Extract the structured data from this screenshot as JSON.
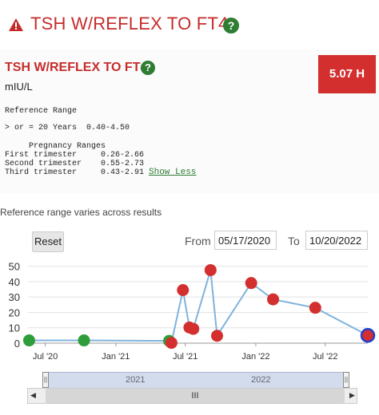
{
  "header": {
    "title": "TSH W/REFLEX TO FT4",
    "warn_icon": "warning-triangle-icon",
    "help_icon": "question-icon",
    "help_glyph": "?"
  },
  "test": {
    "name": "TSH W/REFLEX TO FT4",
    "help_glyph": "?",
    "units": "mIU/L",
    "result": "5.07 H",
    "reference_range_label": "Reference Range",
    "reference_line": "> or = 20 Years  0.40-4.50",
    "pregnancy_heading": "Pregnancy Ranges",
    "pregnancy_ranges": [
      "First trimester     0.26-2.66",
      "Second trimester    0.55-2.73",
      "Third trimester     0.43-2.91"
    ],
    "show_less": "Show Less"
  },
  "note": "Reference range varies across results",
  "controls": {
    "reset": "Reset",
    "from_label": "From",
    "from_value": "05/17/2020",
    "to_label": "To",
    "to_value": "10/20/2022"
  },
  "navigator": {
    "years": [
      "2021",
      "2022"
    ],
    "handle_glyph": "||",
    "scroll_thumb": "III",
    "left_arrow": "◀",
    "right_arrow": "▶"
  },
  "colors": {
    "accent": "#c62b2b",
    "high": "#d32f2f",
    "normal": "#2e9e3a",
    "line": "#7fb3dd",
    "latest_ring": "#1e3fd1"
  },
  "chart_data": {
    "type": "line",
    "x_ticks": [
      "Jul '20",
      "Jan '21",
      "Jul '21",
      "Jan '22",
      "Jul '22"
    ],
    "x_tick_dates": [
      "2020-07-01",
      "2021-01-01",
      "2021-07-01",
      "2022-01-01",
      "2022-07-01"
    ],
    "y_ticks": [
      0,
      10,
      20,
      30,
      40,
      50
    ],
    "ylim": [
      0,
      55
    ],
    "xlim": [
      "2020-05-17",
      "2022-10-20"
    ],
    "grid": true,
    "points": [
      {
        "date": "2020-05-20",
        "value": 1.8,
        "status": "normal"
      },
      {
        "date": "2020-10-10",
        "value": 1.8,
        "status": "normal"
      },
      {
        "date": "2021-05-20",
        "value": 1.5,
        "status": "normal"
      },
      {
        "date": "2021-05-26",
        "value": 0.2,
        "status": "high"
      },
      {
        "date": "2021-06-25",
        "value": 34.5,
        "status": "high"
      },
      {
        "date": "2021-07-12",
        "value": 10.2,
        "status": "high"
      },
      {
        "date": "2021-07-22",
        "value": 9.3,
        "status": "high"
      },
      {
        "date": "2021-09-05",
        "value": 47.5,
        "status": "high"
      },
      {
        "date": "2021-09-22",
        "value": 4.8,
        "status": "high"
      },
      {
        "date": "2021-12-20",
        "value": 39.1,
        "status": "high"
      },
      {
        "date": "2022-02-15",
        "value": 28.5,
        "status": "high"
      },
      {
        "date": "2022-06-05",
        "value": 23.0,
        "status": "high"
      },
      {
        "date": "2022-10-20",
        "value": 5.07,
        "status": "high",
        "latest": true
      }
    ]
  }
}
